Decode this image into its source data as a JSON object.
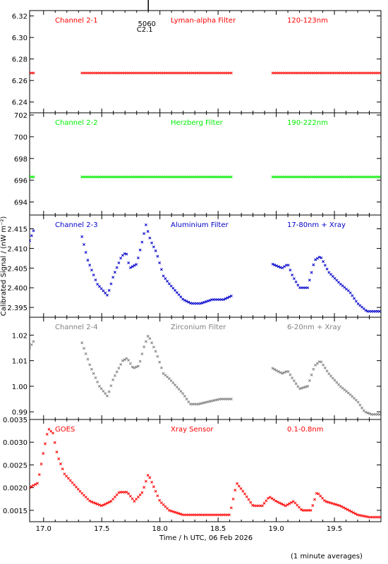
{
  "chart_data": {
    "type": "scatter",
    "x_unit_label": "Time / h UTC, 06 Feb 2026",
    "ylabel": "Calibrated Signal / (nW m⁻²)",
    "footer_note": "(1 minute averages)",
    "x_range": [
      16.88,
      19.9
    ],
    "x_ticks": [
      17.0,
      17.5,
      18.0,
      18.5,
      19.0,
      19.5
    ],
    "x_tick_labels": [
      "17.0",
      "17.5",
      "18.0",
      "18.5",
      "19.0",
      "19.5"
    ],
    "event_marker": {
      "x": 17.9,
      "label_top": "5060",
      "label_bottom": "C2.1"
    },
    "panels": [
      {
        "id": "ch2-1",
        "channel": "Channel 2-1",
        "filter": "Lyman-alpha Filter",
        "band": "120-123nm",
        "color": "#ff0000",
        "ylim": [
          6.23,
          6.325
        ],
        "yticks": [
          6.24,
          6.26,
          6.28,
          6.3,
          6.32
        ],
        "ytick_labels": [
          "6.24",
          "6.26",
          "6.28",
          "6.30",
          "6.32"
        ],
        "segments": [
          {
            "x": [
              16.88,
              16.92
            ],
            "anchors": [
              [
                16.88,
                6.267
              ],
              [
                16.92,
                6.267
              ]
            ]
          },
          {
            "x": [
              17.33,
              18.62
            ],
            "anchors": [
              [
                17.33,
                6.267
              ],
              [
                18.62,
                6.267
              ]
            ]
          },
          {
            "x": [
              18.97,
              19.9
            ],
            "anchors": [
              [
                18.97,
                6.267
              ],
              [
                19.9,
                6.267
              ]
            ]
          }
        ]
      },
      {
        "id": "ch2-2",
        "channel": "Channel 2-2",
        "filter": "Herzberg Filter",
        "band": "190-222nm",
        "color": "#00ee00",
        "ylim": [
          692.8,
          702.2
        ],
        "yticks": [
          694,
          696,
          698,
          700,
          702
        ],
        "ytick_labels": [
          "694",
          "696",
          "698",
          "700",
          "702"
        ],
        "segments": [
          {
            "x": [
              16.88,
              16.92
            ],
            "anchors": [
              [
                16.88,
                696.3
              ],
              [
                16.92,
                696.3
              ]
            ]
          },
          {
            "x": [
              17.33,
              18.62
            ],
            "anchors": [
              [
                17.33,
                696.3
              ],
              [
                18.62,
                696.3
              ]
            ]
          },
          {
            "x": [
              18.97,
              19.9
            ],
            "anchors": [
              [
                18.97,
                696.3
              ],
              [
                19.9,
                696.3
              ]
            ]
          }
        ]
      },
      {
        "id": "ch2-3",
        "channel": "Channel 2-3",
        "filter": "Aluminium Filter",
        "band": "17-80nm + Xray",
        "color": "#0000cc",
        "ylim": [
          2.3925,
          2.4185
        ],
        "yticks": [
          2.395,
          2.4,
          2.405,
          2.41,
          2.415
        ],
        "ytick_labels": [
          "2.395",
          "2.400",
          "2.405",
          "2.410",
          "2.415"
        ],
        "segments": [
          {
            "x": [
              16.88,
              16.92
            ],
            "anchors": [
              [
                16.88,
                2.412
              ],
              [
                16.92,
                2.415
              ]
            ]
          },
          {
            "x": [
              17.33,
              18.62
            ],
            "anchors": [
              [
                17.33,
                2.413
              ],
              [
                17.38,
                2.407
              ],
              [
                17.46,
                2.401
              ],
              [
                17.55,
                2.398
              ],
              [
                17.6,
                2.403
              ],
              [
                17.67,
                2.408
              ],
              [
                17.71,
                2.409
              ],
              [
                17.74,
                2.405
              ],
              [
                17.8,
                2.406
              ],
              [
                17.85,
                2.412
              ],
              [
                17.88,
                2.416
              ],
              [
                17.92,
                2.412
              ],
              [
                17.97,
                2.409
              ],
              [
                18.03,
                2.403
              ],
              [
                18.08,
                2.401
              ],
              [
                18.14,
                2.399
              ],
              [
                18.2,
                2.397
              ],
              [
                18.27,
                2.396
              ],
              [
                18.35,
                2.396
              ],
              [
                18.45,
                2.397
              ],
              [
                18.55,
                2.397
              ],
              [
                18.62,
                2.398
              ]
            ]
          },
          {
            "x": [
              18.97,
              19.9
            ],
            "anchors": [
              [
                18.97,
                2.406
              ],
              [
                19.05,
                2.405
              ],
              [
                19.1,
                2.406
              ],
              [
                19.14,
                2.403
              ],
              [
                19.2,
                2.4
              ],
              [
                19.27,
                2.4
              ],
              [
                19.33,
                2.407
              ],
              [
                19.38,
                2.408
              ],
              [
                19.45,
                2.404
              ],
              [
                19.55,
                2.401
              ],
              [
                19.63,
                2.399
              ],
              [
                19.7,
                2.396
              ],
              [
                19.78,
                2.394
              ],
              [
                19.9,
                2.394
              ]
            ]
          }
        ]
      },
      {
        "id": "ch2-4",
        "channel": "Channel 2-4",
        "filter": "Zirconium Filter",
        "band": "6-20nm + Xray",
        "color": "#808080",
        "ylim": [
          0.987,
          1.027
        ],
        "yticks": [
          0.99,
          1.0,
          1.01,
          1.02
        ],
        "ytick_labels": [
          "0.99",
          "1.00",
          "1.01",
          "1.02"
        ],
        "segments": [
          {
            "x": [
              16.88,
              16.92
            ],
            "anchors": [
              [
                16.88,
                1.015
              ],
              [
                16.92,
                1.018
              ]
            ]
          },
          {
            "x": [
              17.33,
              18.62
            ],
            "anchors": [
              [
                17.33,
                1.017
              ],
              [
                17.4,
                1.008
              ],
              [
                17.48,
                1.0
              ],
              [
                17.55,
                0.996
              ],
              [
                17.6,
                1.003
              ],
              [
                17.68,
                1.01
              ],
              [
                17.72,
                1.011
              ],
              [
                17.77,
                1.007
              ],
              [
                17.82,
                1.008
              ],
              [
                17.86,
                1.015
              ],
              [
                17.9,
                1.02
              ],
              [
                17.93,
                1.017
              ],
              [
                17.97,
                1.013
              ],
              [
                18.03,
                1.005
              ],
              [
                18.08,
                1.003
              ],
              [
                18.14,
                1.0
              ],
              [
                18.2,
                0.997
              ],
              [
                18.26,
                0.993
              ],
              [
                18.33,
                0.993
              ],
              [
                18.42,
                0.994
              ],
              [
                18.52,
                0.995
              ],
              [
                18.62,
                0.995
              ]
            ]
          },
          {
            "x": [
              18.97,
              19.9
            ],
            "anchors": [
              [
                18.97,
                1.007
              ],
              [
                19.05,
                1.005
              ],
              [
                19.1,
                1.006
              ],
              [
                19.14,
                1.003
              ],
              [
                19.2,
                0.999
              ],
              [
                19.27,
                1.0
              ],
              [
                19.33,
                1.008
              ],
              [
                19.38,
                1.01
              ],
              [
                19.45,
                1.005
              ],
              [
                19.55,
                1.0
              ],
              [
                19.63,
                0.997
              ],
              [
                19.7,
                0.994
              ],
              [
                19.76,
                0.99
              ],
              [
                19.82,
                0.989
              ],
              [
                19.9,
                0.989
              ]
            ]
          }
        ]
      },
      {
        "id": "goes",
        "channel": "GOES",
        "filter": "Xray Sensor",
        "band": "0.1-0.8nm",
        "color": "#ff0000",
        "ylim": [
          0.00125,
          0.0035
        ],
        "yticks": [
          0.0015,
          0.002,
          0.0025,
          0.003,
          0.0035
        ],
        "ytick_labels": [
          "0.0015",
          "0.0020",
          "0.0025",
          "0.0030",
          "0.0035"
        ],
        "segments": [
          {
            "x": [
              16.88,
              19.9
            ],
            "anchors": [
              [
                16.88,
                0.002
              ],
              [
                16.95,
                0.0021
              ],
              [
                17.0,
                0.0028
              ],
              [
                17.04,
                0.0033
              ],
              [
                17.08,
                0.0032
              ],
              [
                17.12,
                0.0027
              ],
              [
                17.18,
                0.0023
              ],
              [
                17.25,
                0.0021
              ],
              [
                17.32,
                0.0019
              ],
              [
                17.4,
                0.0017
              ],
              [
                17.5,
                0.0016
              ],
              [
                17.58,
                0.0017
              ],
              [
                17.65,
                0.0019
              ],
              [
                17.72,
                0.0019
              ],
              [
                17.78,
                0.0017
              ],
              [
                17.85,
                0.0019
              ],
              [
                17.9,
                0.0023
              ],
              [
                17.95,
                0.002
              ],
              [
                18.0,
                0.0017
              ],
              [
                18.08,
                0.0015
              ],
              [
                18.2,
                0.0014
              ],
              [
                18.35,
                0.0014
              ],
              [
                18.5,
                0.0014
              ],
              [
                18.6,
                0.0014
              ],
              [
                18.66,
                0.0021
              ],
              [
                18.72,
                0.0019
              ],
              [
                18.8,
                0.0016
              ],
              [
                18.88,
                0.0016
              ],
              [
                18.94,
                0.0018
              ],
              [
                19.0,
                0.0017
              ],
              [
                19.08,
                0.0016
              ],
              [
                19.15,
                0.0017
              ],
              [
                19.22,
                0.0015
              ],
              [
                19.3,
                0.0015
              ],
              [
                19.35,
                0.0019
              ],
              [
                19.42,
                0.0017
              ],
              [
                19.55,
                0.0016
              ],
              [
                19.7,
                0.0014
              ],
              [
                19.8,
                0.00135
              ],
              [
                19.9,
                0.00135
              ]
            ]
          }
        ]
      }
    ]
  }
}
